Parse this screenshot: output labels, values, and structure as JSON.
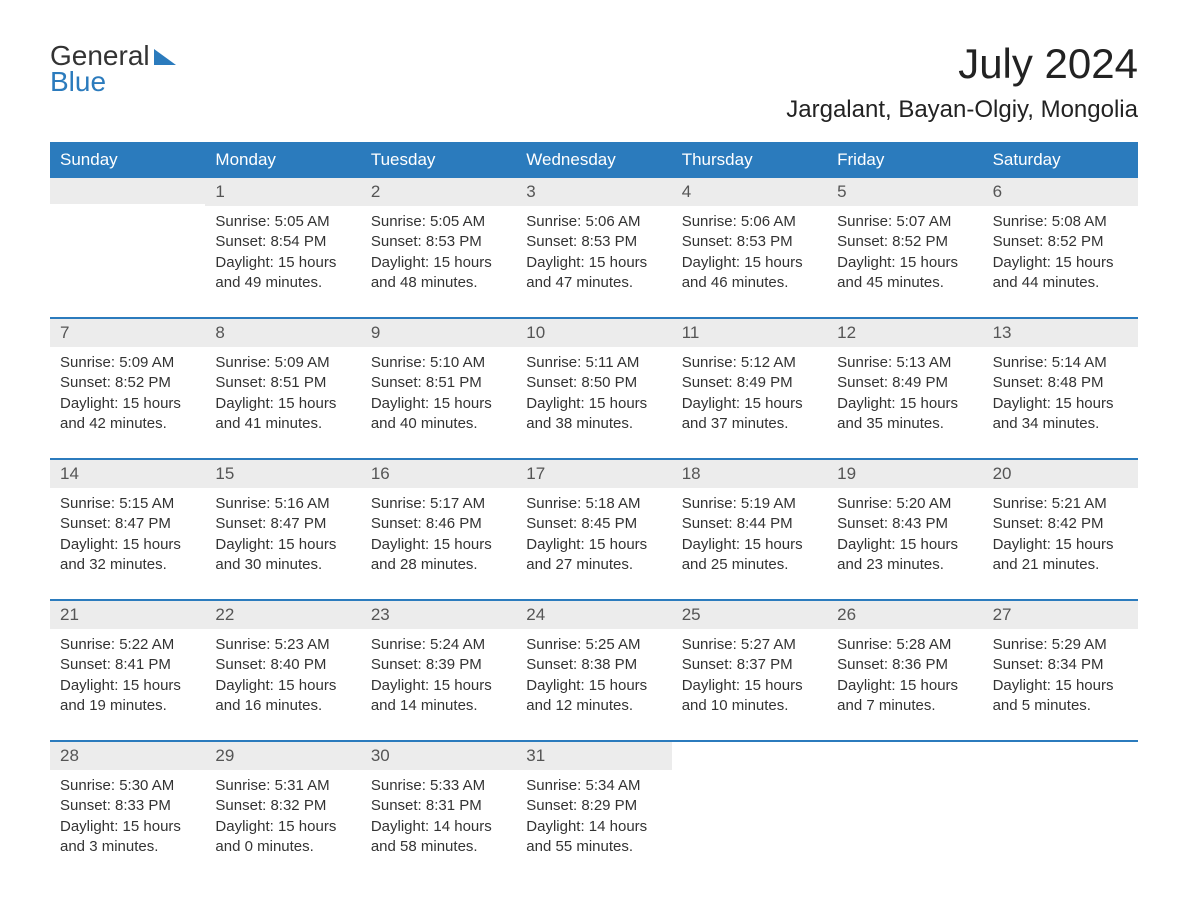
{
  "logo": {
    "text1": "General",
    "text2": "Blue"
  },
  "title": "July 2024",
  "location": "Jargalant, Bayan-Olgiy, Mongolia",
  "weekdays": [
    "Sunday",
    "Monday",
    "Tuesday",
    "Wednesday",
    "Thursday",
    "Friday",
    "Saturday"
  ],
  "colors": {
    "header_bg": "#2b7bbd",
    "header_text": "#ffffff",
    "daynum_bg": "#ececec",
    "week_divider": "#2b7bbd",
    "body_bg": "#ffffff",
    "text": "#333333"
  },
  "typography": {
    "title_fontsize": 42,
    "location_fontsize": 24,
    "weekday_fontsize": 17,
    "daynum_fontsize": 17,
    "body_fontsize": 15
  },
  "weeks": [
    [
      {
        "empty": true
      },
      {
        "num": "1",
        "sunrise": "Sunrise: 5:05 AM",
        "sunset": "Sunset: 8:54 PM",
        "daylight1": "Daylight: 15 hours",
        "daylight2": "and 49 minutes."
      },
      {
        "num": "2",
        "sunrise": "Sunrise: 5:05 AM",
        "sunset": "Sunset: 8:53 PM",
        "daylight1": "Daylight: 15 hours",
        "daylight2": "and 48 minutes."
      },
      {
        "num": "3",
        "sunrise": "Sunrise: 5:06 AM",
        "sunset": "Sunset: 8:53 PM",
        "daylight1": "Daylight: 15 hours",
        "daylight2": "and 47 minutes."
      },
      {
        "num": "4",
        "sunrise": "Sunrise: 5:06 AM",
        "sunset": "Sunset: 8:53 PM",
        "daylight1": "Daylight: 15 hours",
        "daylight2": "and 46 minutes."
      },
      {
        "num": "5",
        "sunrise": "Sunrise: 5:07 AM",
        "sunset": "Sunset: 8:52 PM",
        "daylight1": "Daylight: 15 hours",
        "daylight2": "and 45 minutes."
      },
      {
        "num": "6",
        "sunrise": "Sunrise: 5:08 AM",
        "sunset": "Sunset: 8:52 PM",
        "daylight1": "Daylight: 15 hours",
        "daylight2": "and 44 minutes."
      }
    ],
    [
      {
        "num": "7",
        "sunrise": "Sunrise: 5:09 AM",
        "sunset": "Sunset: 8:52 PM",
        "daylight1": "Daylight: 15 hours",
        "daylight2": "and 42 minutes."
      },
      {
        "num": "8",
        "sunrise": "Sunrise: 5:09 AM",
        "sunset": "Sunset: 8:51 PM",
        "daylight1": "Daylight: 15 hours",
        "daylight2": "and 41 minutes."
      },
      {
        "num": "9",
        "sunrise": "Sunrise: 5:10 AM",
        "sunset": "Sunset: 8:51 PM",
        "daylight1": "Daylight: 15 hours",
        "daylight2": "and 40 minutes."
      },
      {
        "num": "10",
        "sunrise": "Sunrise: 5:11 AM",
        "sunset": "Sunset: 8:50 PM",
        "daylight1": "Daylight: 15 hours",
        "daylight2": "and 38 minutes."
      },
      {
        "num": "11",
        "sunrise": "Sunrise: 5:12 AM",
        "sunset": "Sunset: 8:49 PM",
        "daylight1": "Daylight: 15 hours",
        "daylight2": "and 37 minutes."
      },
      {
        "num": "12",
        "sunrise": "Sunrise: 5:13 AM",
        "sunset": "Sunset: 8:49 PM",
        "daylight1": "Daylight: 15 hours",
        "daylight2": "and 35 minutes."
      },
      {
        "num": "13",
        "sunrise": "Sunrise: 5:14 AM",
        "sunset": "Sunset: 8:48 PM",
        "daylight1": "Daylight: 15 hours",
        "daylight2": "and 34 minutes."
      }
    ],
    [
      {
        "num": "14",
        "sunrise": "Sunrise: 5:15 AM",
        "sunset": "Sunset: 8:47 PM",
        "daylight1": "Daylight: 15 hours",
        "daylight2": "and 32 minutes."
      },
      {
        "num": "15",
        "sunrise": "Sunrise: 5:16 AM",
        "sunset": "Sunset: 8:47 PM",
        "daylight1": "Daylight: 15 hours",
        "daylight2": "and 30 minutes."
      },
      {
        "num": "16",
        "sunrise": "Sunrise: 5:17 AM",
        "sunset": "Sunset: 8:46 PM",
        "daylight1": "Daylight: 15 hours",
        "daylight2": "and 28 minutes."
      },
      {
        "num": "17",
        "sunrise": "Sunrise: 5:18 AM",
        "sunset": "Sunset: 8:45 PM",
        "daylight1": "Daylight: 15 hours",
        "daylight2": "and 27 minutes."
      },
      {
        "num": "18",
        "sunrise": "Sunrise: 5:19 AM",
        "sunset": "Sunset: 8:44 PM",
        "daylight1": "Daylight: 15 hours",
        "daylight2": "and 25 minutes."
      },
      {
        "num": "19",
        "sunrise": "Sunrise: 5:20 AM",
        "sunset": "Sunset: 8:43 PM",
        "daylight1": "Daylight: 15 hours",
        "daylight2": "and 23 minutes."
      },
      {
        "num": "20",
        "sunrise": "Sunrise: 5:21 AM",
        "sunset": "Sunset: 8:42 PM",
        "daylight1": "Daylight: 15 hours",
        "daylight2": "and 21 minutes."
      }
    ],
    [
      {
        "num": "21",
        "sunrise": "Sunrise: 5:22 AM",
        "sunset": "Sunset: 8:41 PM",
        "daylight1": "Daylight: 15 hours",
        "daylight2": "and 19 minutes."
      },
      {
        "num": "22",
        "sunrise": "Sunrise: 5:23 AM",
        "sunset": "Sunset: 8:40 PM",
        "daylight1": "Daylight: 15 hours",
        "daylight2": "and 16 minutes."
      },
      {
        "num": "23",
        "sunrise": "Sunrise: 5:24 AM",
        "sunset": "Sunset: 8:39 PM",
        "daylight1": "Daylight: 15 hours",
        "daylight2": "and 14 minutes."
      },
      {
        "num": "24",
        "sunrise": "Sunrise: 5:25 AM",
        "sunset": "Sunset: 8:38 PM",
        "daylight1": "Daylight: 15 hours",
        "daylight2": "and 12 minutes."
      },
      {
        "num": "25",
        "sunrise": "Sunrise: 5:27 AM",
        "sunset": "Sunset: 8:37 PM",
        "daylight1": "Daylight: 15 hours",
        "daylight2": "and 10 minutes."
      },
      {
        "num": "26",
        "sunrise": "Sunrise: 5:28 AM",
        "sunset": "Sunset: 8:36 PM",
        "daylight1": "Daylight: 15 hours",
        "daylight2": "and 7 minutes."
      },
      {
        "num": "27",
        "sunrise": "Sunrise: 5:29 AM",
        "sunset": "Sunset: 8:34 PM",
        "daylight1": "Daylight: 15 hours",
        "daylight2": "and 5 minutes."
      }
    ],
    [
      {
        "num": "28",
        "sunrise": "Sunrise: 5:30 AM",
        "sunset": "Sunset: 8:33 PM",
        "daylight1": "Daylight: 15 hours",
        "daylight2": "and 3 minutes."
      },
      {
        "num": "29",
        "sunrise": "Sunrise: 5:31 AM",
        "sunset": "Sunset: 8:32 PM",
        "daylight1": "Daylight: 15 hours",
        "daylight2": "and 0 minutes."
      },
      {
        "num": "30",
        "sunrise": "Sunrise: 5:33 AM",
        "sunset": "Sunset: 8:31 PM",
        "daylight1": "Daylight: 14 hours",
        "daylight2": "and 58 minutes."
      },
      {
        "num": "31",
        "sunrise": "Sunrise: 5:34 AM",
        "sunset": "Sunset: 8:29 PM",
        "daylight1": "Daylight: 14 hours",
        "daylight2": "and 55 minutes."
      },
      {
        "empty": true,
        "noBg": true
      },
      {
        "empty": true,
        "noBg": true
      },
      {
        "empty": true,
        "noBg": true
      }
    ]
  ]
}
